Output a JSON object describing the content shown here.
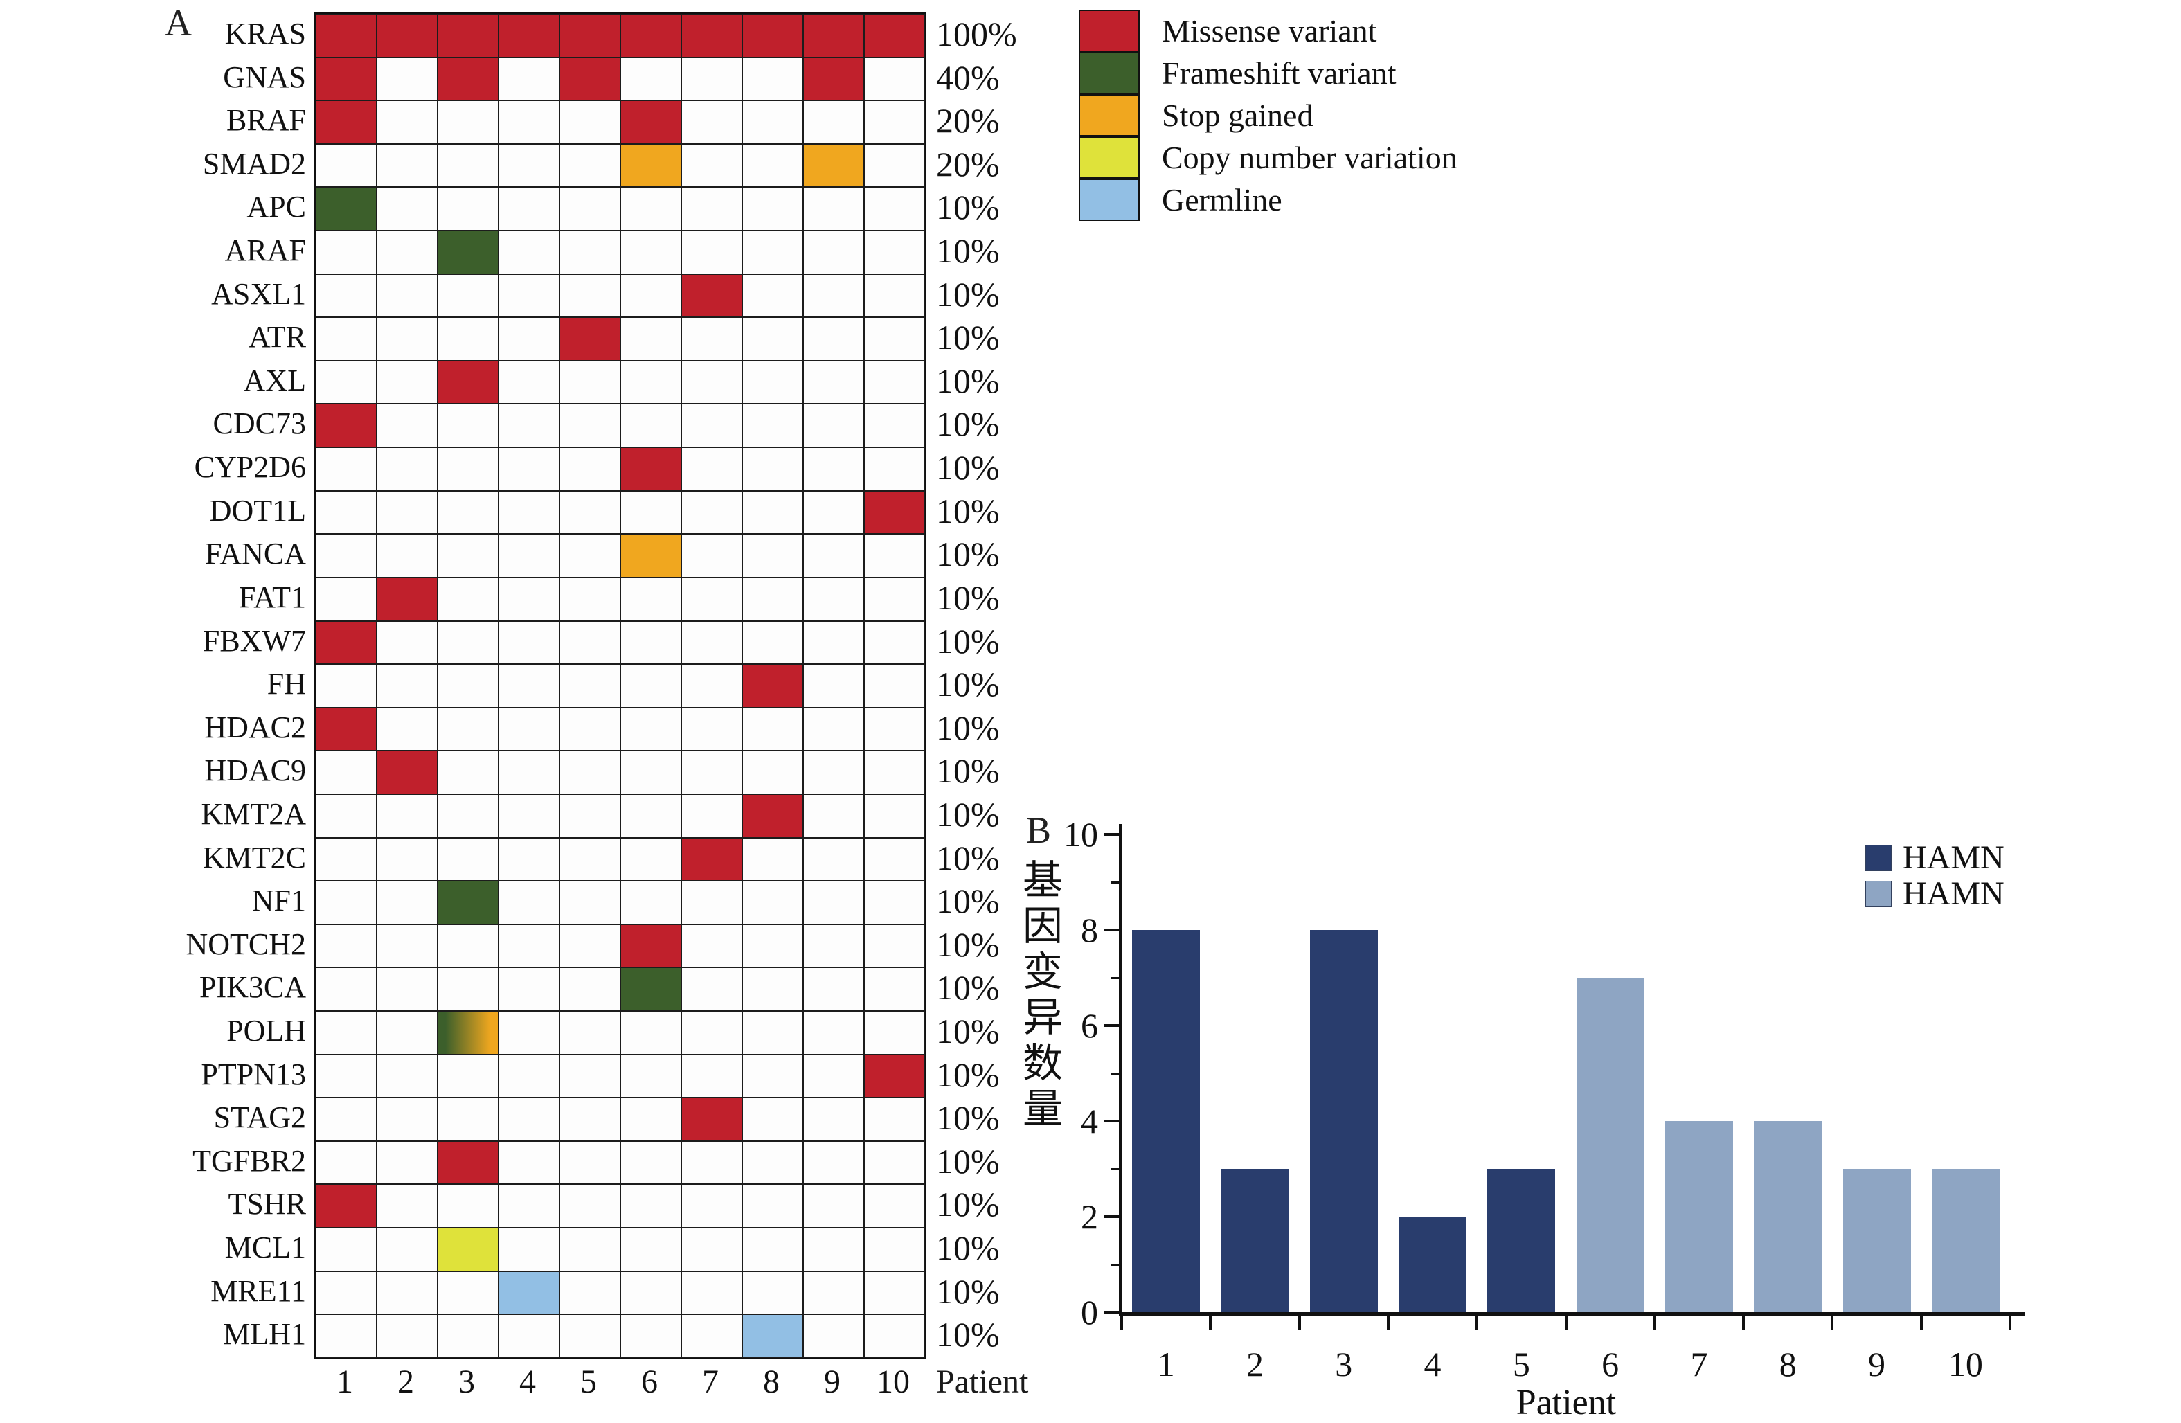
{
  "colors": {
    "missense": "#c0202c",
    "frameshift": "#3c5f2b",
    "stop_gained": "#f0a71f",
    "cnv": "#dfe23a",
    "germline": "#92bfe4",
    "bar_dark": "#293d6d",
    "bar_light": "#8ea5c3",
    "axis": "#111111"
  },
  "panel_a": {
    "label": "A",
    "patient_axis_label": "Patient",
    "legend": [
      {
        "label": "Missense variant",
        "type": "missense"
      },
      {
        "label": "Frameshift variant",
        "type": "frameshift"
      },
      {
        "label": "Stop gained",
        "type": "stop_gained"
      },
      {
        "label": "Copy number variation",
        "type": "cnv"
      },
      {
        "label": "Germline",
        "type": "germline"
      }
    ]
  },
  "panel_b": {
    "label": "B",
    "xlabel": "Patient",
    "ylabel": "基因变异数量",
    "legend": [
      {
        "label": "HAMN",
        "color_key": "bar_dark"
      },
      {
        "label": "HAMN",
        "color_key": "bar_light"
      }
    ]
  },
  "chart_data": [
    {
      "type": "heatmap",
      "panel": "A",
      "x_categories": [
        "1",
        "2",
        "3",
        "4",
        "5",
        "6",
        "7",
        "8",
        "9",
        "10"
      ],
      "x_axis_label": "Patient",
      "value_legend": [
        "Missense variant",
        "Frameshift variant",
        "Stop gained",
        "Copy number variation",
        "Germline"
      ],
      "rows": [
        {
          "gene": "KRAS",
          "percent": "100%",
          "cells": {
            "1": "missense",
            "2": "missense",
            "3": "missense",
            "4": "missense",
            "5": "missense",
            "6": "missense",
            "7": "missense",
            "8": "missense",
            "9": "missense",
            "10": "missense"
          }
        },
        {
          "gene": "GNAS",
          "percent": "40%",
          "cells": {
            "1": "missense",
            "3": "missense",
            "5": "missense",
            "9": "missense"
          }
        },
        {
          "gene": "BRAF",
          "percent": "20%",
          "cells": {
            "1": "missense",
            "6": "missense"
          }
        },
        {
          "gene": "SMAD2",
          "percent": "20%",
          "cells": {
            "6": "stop_gained",
            "9": "stop_gained"
          }
        },
        {
          "gene": "APC",
          "percent": "10%",
          "cells": {
            "1": "frameshift"
          }
        },
        {
          "gene": "ARAF",
          "percent": "10%",
          "cells": {
            "3": "frameshift"
          }
        },
        {
          "gene": "ASXL1",
          "percent": "10%",
          "cells": {
            "7": "missense"
          }
        },
        {
          "gene": "ATR",
          "percent": "10%",
          "cells": {
            "5": "missense"
          }
        },
        {
          "gene": "AXL",
          "percent": "10%",
          "cells": {
            "3": "missense"
          }
        },
        {
          "gene": "CDC73",
          "percent": "10%",
          "cells": {
            "1": "missense"
          }
        },
        {
          "gene": "CYP2D6",
          "percent": "10%",
          "cells": {
            "6": "missense"
          }
        },
        {
          "gene": "DOT1L",
          "percent": "10%",
          "cells": {
            "10": "missense"
          }
        },
        {
          "gene": "FANCA",
          "percent": "10%",
          "cells": {
            "6": "stop_gained"
          }
        },
        {
          "gene": "FAT1",
          "percent": "10%",
          "cells": {
            "2": "missense"
          }
        },
        {
          "gene": "FBXW7",
          "percent": "10%",
          "cells": {
            "1": "missense"
          }
        },
        {
          "gene": "FH",
          "percent": "10%",
          "cells": {
            "8": "missense"
          }
        },
        {
          "gene": "HDAC2",
          "percent": "10%",
          "cells": {
            "1": "missense"
          }
        },
        {
          "gene": "HDAC9",
          "percent": "10%",
          "cells": {
            "2": "missense"
          }
        },
        {
          "gene": "KMT2A",
          "percent": "10%",
          "cells": {
            "8": "missense"
          }
        },
        {
          "gene": "KMT2C",
          "percent": "10%",
          "cells": {
            "7": "missense"
          }
        },
        {
          "gene": "NF1",
          "percent": "10%",
          "cells": {
            "3": "frameshift"
          }
        },
        {
          "gene": "NOTCH2",
          "percent": "10%",
          "cells": {
            "6": "missense"
          }
        },
        {
          "gene": "PIK3CA",
          "percent": "10%",
          "cells": {
            "6": "frameshift"
          }
        },
        {
          "gene": "POLH",
          "percent": "10%",
          "cells": {
            "3": "frameshift+stop_gained"
          }
        },
        {
          "gene": "PTPN13",
          "percent": "10%",
          "cells": {
            "10": "missense"
          }
        },
        {
          "gene": "STAG2",
          "percent": "10%",
          "cells": {
            "7": "missense"
          }
        },
        {
          "gene": "TGFBR2",
          "percent": "10%",
          "cells": {
            "3": "missense"
          }
        },
        {
          "gene": "TSHR",
          "percent": "10%",
          "cells": {
            "1": "missense"
          }
        },
        {
          "gene": "MCL1",
          "percent": "10%",
          "cells": {
            "3": "cnv"
          }
        },
        {
          "gene": "MRE11",
          "percent": "10%",
          "cells": {
            "4": "germline"
          }
        },
        {
          "gene": "MLH1",
          "percent": "10%",
          "cells": {
            "8": "germline"
          }
        }
      ]
    },
    {
      "type": "bar",
      "panel": "B",
      "categories": [
        "1",
        "2",
        "3",
        "4",
        "5",
        "6",
        "7",
        "8",
        "9",
        "10"
      ],
      "values": [
        8,
        3,
        8,
        2,
        3,
        7,
        4,
        4,
        3,
        3
      ],
      "bars": [
        {
          "category": "1",
          "value": 8,
          "color_key": "bar_dark"
        },
        {
          "category": "2",
          "value": 3,
          "color_key": "bar_dark"
        },
        {
          "category": "3",
          "value": 8,
          "color_key": "bar_dark"
        },
        {
          "category": "4",
          "value": 2,
          "color_key": "bar_dark"
        },
        {
          "category": "5",
          "value": 3,
          "color_key": "bar_dark"
        },
        {
          "category": "6",
          "value": 7,
          "color_key": "bar_light"
        },
        {
          "category": "7",
          "value": 4,
          "color_key": "bar_light"
        },
        {
          "category": "8",
          "value": 4,
          "color_key": "bar_light"
        },
        {
          "category": "9",
          "value": 3,
          "color_key": "bar_light"
        },
        {
          "category": "10",
          "value": 3,
          "color_key": "bar_light"
        }
      ],
      "series": [
        {
          "name": "HAMN",
          "color_key": "bar_dark",
          "categories": [
            "1",
            "2",
            "3",
            "4",
            "5"
          ],
          "values": [
            8,
            3,
            8,
            2,
            3
          ]
        },
        {
          "name": "HAMN",
          "color_key": "bar_light",
          "categories": [
            "6",
            "7",
            "8",
            "9",
            "10"
          ],
          "values": [
            7,
            4,
            4,
            3,
            3
          ]
        }
      ],
      "xlabel": "Patient",
      "ylabel": "基因变异数量",
      "ylim": [
        0,
        10
      ],
      "yticks_major": [
        0,
        2,
        4,
        6,
        8,
        10
      ],
      "yticks_minor": [
        1,
        3,
        5,
        7,
        9
      ],
      "grid": false,
      "legend_position": "top-right"
    }
  ]
}
